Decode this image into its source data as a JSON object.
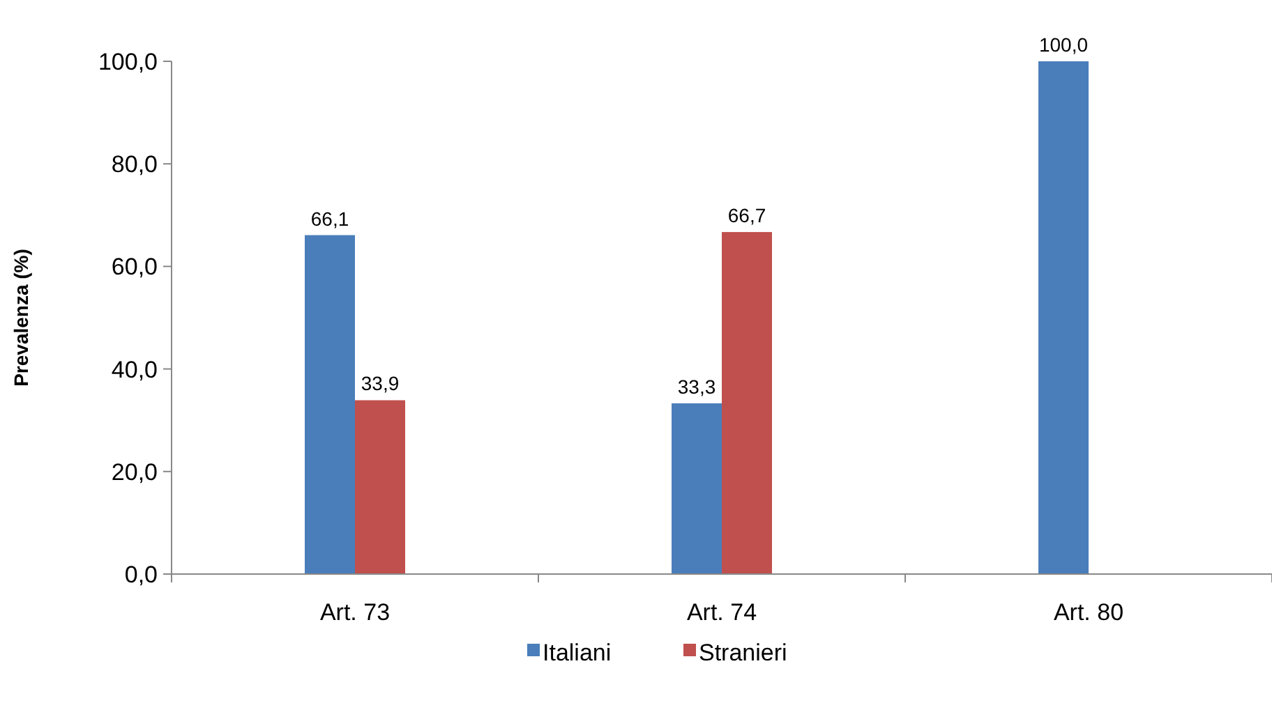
{
  "chart_data": {
    "type": "bar",
    "ylabel": "Prevalenza (%)",
    "categories": [
      "Art. 73",
      "Art. 74",
      "Art. 80"
    ],
    "series": [
      {
        "name": "Italiani",
        "color": "#4a7ebb",
        "values": [
          66.1,
          33.3,
          100.0
        ],
        "value_labels": [
          "66,1",
          "33,3",
          "100,0"
        ]
      },
      {
        "name": "Stranieri",
        "color": "#c0504d",
        "values": [
          33.9,
          66.7,
          null
        ],
        "value_labels": [
          "33,9",
          "66,7",
          null
        ]
      }
    ],
    "ylim": [
      0,
      100
    ],
    "yticks": [
      {
        "value": 0,
        "label": "0,0"
      },
      {
        "value": 20,
        "label": "20,0"
      },
      {
        "value": 40,
        "label": "40,0"
      },
      {
        "value": 60,
        "label": "60,0"
      },
      {
        "value": 80,
        "label": "80,0"
      },
      {
        "value": 100,
        "label": "100,0"
      }
    ],
    "grid": false,
    "legend": "bottom"
  }
}
